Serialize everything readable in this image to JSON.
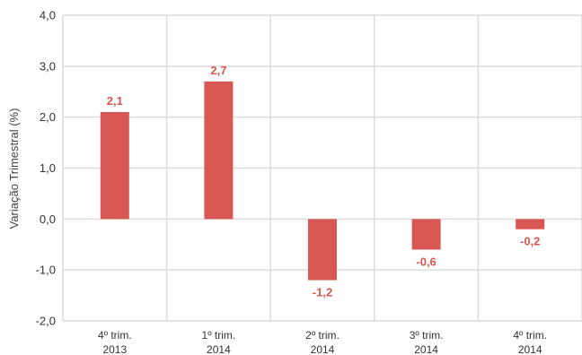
{
  "chart_data": {
    "type": "bar",
    "title": "",
    "xlabel": "",
    "ylabel": "Variação Trimestral (%)",
    "ylim": [
      -2.0,
      4.0
    ],
    "yticks": [
      "-2,0",
      "-1,0",
      "0,0",
      "1,0",
      "2,0",
      "3,0",
      "4,0"
    ],
    "categories": [
      [
        "4º trim.",
        "2013"
      ],
      [
        "1º trim.",
        "2014"
      ],
      [
        "2º trim.",
        "2014"
      ],
      [
        "3º trim.",
        "2014"
      ],
      [
        "4º trim.",
        "2014"
      ]
    ],
    "values": [
      2.1,
      2.7,
      -1.2,
      -0.6,
      -0.2
    ],
    "value_labels": [
      "2,1",
      "2,7",
      "-1,2",
      "-0,6",
      "-0,2"
    ],
    "grid": true,
    "bar_color": "#d95753",
    "label_color": "#d95753",
    "grid_color": "#dcdcdc"
  }
}
